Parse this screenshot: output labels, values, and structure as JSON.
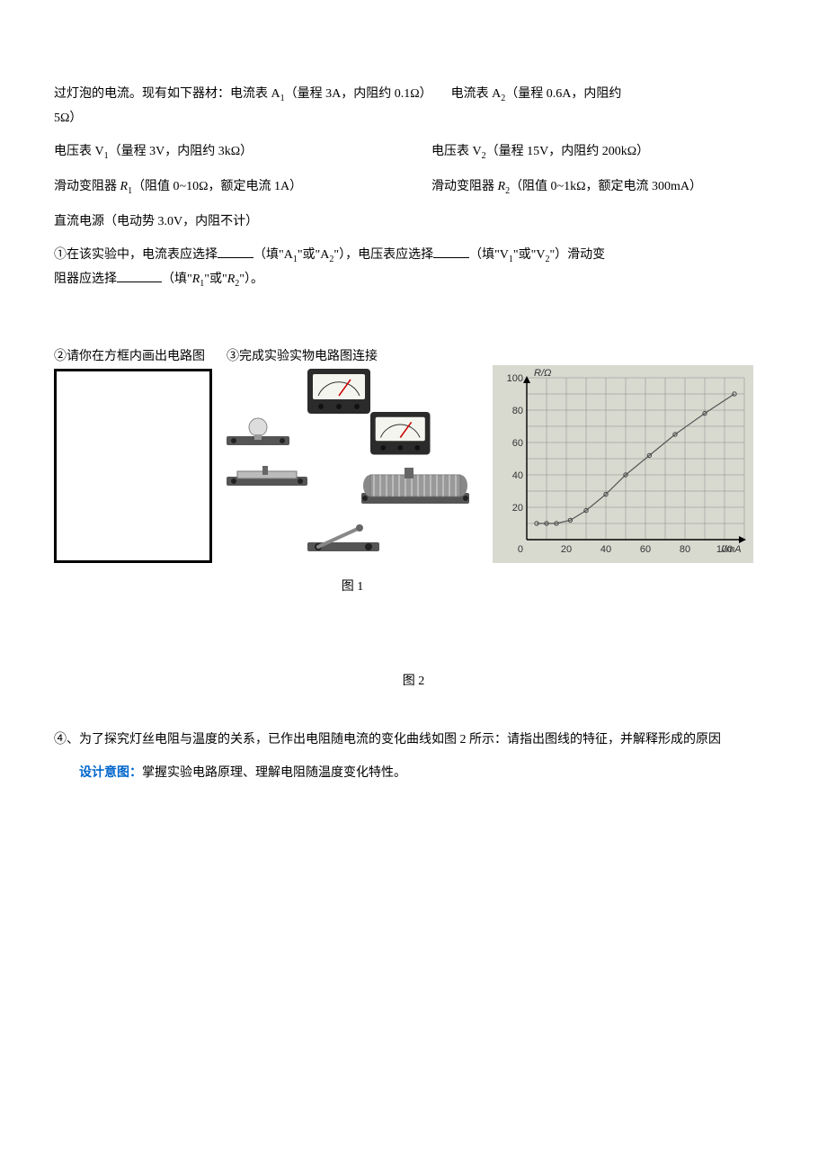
{
  "intro": {
    "line1_pre": "过灯泡的电流。现有如下器材：电流表 A",
    "line1_sub1": "1",
    "line1_mid1": "（量程 3A，内阻约 0.1Ω）　　电流表 A",
    "line1_sub2": "2",
    "line1_mid2": "（量程 0.6A，内阻约",
    "line2": "5Ω）"
  },
  "row_volt": {
    "left_pre": "电压表 V",
    "left_sub": "1",
    "left_post": "（量程 3V，内阻约 3kΩ）",
    "right_pre": "电压表 V",
    "right_sub": "2",
    "right_post": "（量程 15V，内阻约 200kΩ）"
  },
  "row_rheo": {
    "left_pre": "滑动变阻器 ",
    "left_r": "R",
    "left_sub": "1",
    "left_post": "（阻值 0~10Ω，额定电流 1A）",
    "right_pre": "滑动变阻器 ",
    "right_r": "R",
    "right_sub": "2",
    "right_post": "（阻值 0~1kΩ，额定电流 300mA）"
  },
  "dc_source": "直流电源（电动势 3.0V，内阻不计）",
  "q1": {
    "part1": "①在该实验中，电流表应选择",
    "part2": "（填\"A",
    "sub_a1": "1",
    "part3": "\"或\"A",
    "sub_a2": "2",
    "part4": "\"），电压表应选择",
    "part5": "（填\"V",
    "sub_v1": "1",
    "part6": "\"或\"V",
    "sub_v2": "2",
    "part7": "\"）滑动变",
    "line2_pre": "阻器应选择",
    "line2_mid": "（填\"",
    "line2_r1": "R",
    "line2_sub1": "1",
    "line2_mid2": "\"或\"",
    "line2_r2": "R",
    "line2_sub2": "2",
    "line2_post": "\"）。"
  },
  "q2_label": "②请你在方框内画出电路图",
  "q3_label": "③完成实验实物电路图连接",
  "fig1_label": "图 1",
  "fig2_label": "图 2",
  "q4": "④、为了探究灯丝电阻与温度的关系，已作出电阻随电流的变化曲线如图 2 所示：请指出图线的特征，并解释形成的原因",
  "purpose_label": "设计意图：",
  "purpose_text": "掌握实验电路原理、理解电阻随温度变化特性。",
  "graph": {
    "type": "scatter-line",
    "background_color": "#d8dad0",
    "grid_color": "#888888",
    "axis_color": "#000000",
    "text_color": "#333333",
    "y_label": "R/Ω",
    "y_ticks": [
      0,
      20,
      40,
      60,
      80,
      100
    ],
    "y_max": 100,
    "x_label": "I/mA",
    "x_ticks": [
      0,
      20,
      40,
      60,
      80,
      100
    ],
    "x_max": 110,
    "points": [
      {
        "x": 5,
        "y": 10
      },
      {
        "x": 10,
        "y": 10
      },
      {
        "x": 15,
        "y": 10
      },
      {
        "x": 22,
        "y": 12
      },
      {
        "x": 30,
        "y": 18
      },
      {
        "x": 40,
        "y": 28
      },
      {
        "x": 50,
        "y": 40
      },
      {
        "x": 62,
        "y": 52
      },
      {
        "x": 75,
        "y": 65
      },
      {
        "x": 90,
        "y": 78
      },
      {
        "x": 105,
        "y": 90
      }
    ],
    "point_color": "#444444",
    "point_radius": 2.2,
    "line_color": "#555555",
    "line_width": 1.2,
    "font_size": 11
  },
  "components": {
    "meter_body_color": "#2b2b2b",
    "meter_face_color": "#f5f5f0",
    "needle_color": "#cc0000",
    "base_color": "#555555",
    "rheostat_body": "#999999",
    "rheostat_coil": "#bbbbbb",
    "switch_base": "#555555",
    "switch_arm": "#888888",
    "bulb_glass": "#dddddd"
  }
}
